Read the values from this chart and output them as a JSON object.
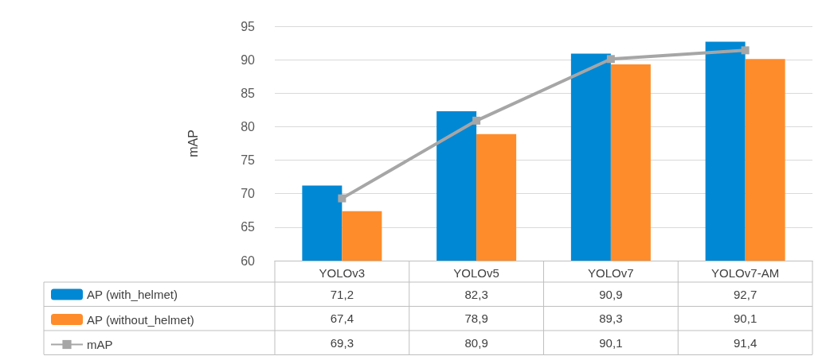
{
  "chart_data": {
    "type": "bar",
    "ylabel": "mAP",
    "categories": [
      "YOLOv3",
      "YOLOv5",
      "YOLOv7",
      "YOLOv7-AM"
    ],
    "series": [
      {
        "name": "AP (with_helmet)",
        "color": "#0088d4",
        "values": [
          71.2,
          82.3,
          90.9,
          92.7
        ],
        "value_labels": [
          "71,2",
          "82,3",
          "90,9",
          "92,7"
        ]
      },
      {
        "name": "AP (without_helmet)",
        "color": "#ff8c2a",
        "values": [
          67.4,
          78.9,
          89.3,
          90.1
        ],
        "value_labels": [
          "67,4",
          "78,9",
          "89,3",
          "90,1"
        ]
      },
      {
        "name": "mAP",
        "type": "line",
        "color": "#a6a6a6",
        "marker": "square",
        "values": [
          69.3,
          80.9,
          90.1,
          91.4
        ],
        "value_labels": [
          "69,3",
          "80,9",
          "90,1",
          "91,4"
        ]
      }
    ],
    "ylim": [
      60,
      95
    ],
    "yticks": [
      60,
      65,
      70,
      75,
      80,
      85,
      90,
      95
    ],
    "grid": "y",
    "legend": "bottom"
  }
}
